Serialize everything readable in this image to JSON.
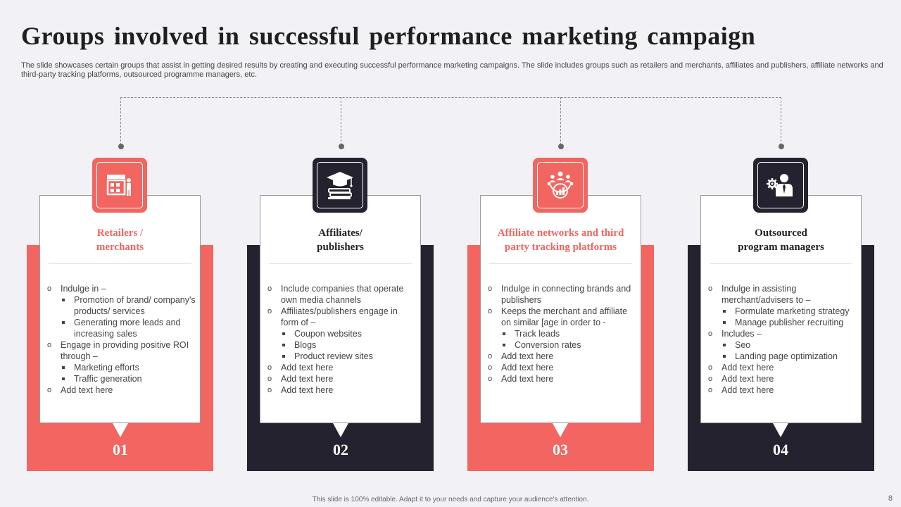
{
  "title": "Groups involved in successful performance marketing campaign",
  "subtitle": "The slide showcases certain groups that assist in getting desired results by creating and executing successful performance marketing campaigns. The slide includes groups such as retailers and merchants, affiliates and publishers, affiliate networks and third-party tracking platforms, outsourced programme managers, etc.",
  "colors": {
    "accent_red": "#f26560",
    "dark": "#23222e"
  },
  "groups": [
    {
      "number": "01",
      "title_line1": "Retailers /",
      "title_line2": "merchants",
      "icon": "store-icon",
      "bullets": [
        "Indulge in –",
        "Promotion of brand/ company's products/ services",
        "Generating more leads and increasing sales",
        "Engage in providing  positive ROI through –",
        "Marketing efforts",
        "Traffic  generation",
        "Add text here"
      ]
    },
    {
      "number": "02",
      "title_line1": "Affiliates/",
      "title_line2": "publishers",
      "icon": "graduation-cap-books-icon",
      "bullets": [
        "Include companies that operate own media channels",
        "Affiliates/publishers engage in form of –",
        "Coupon websites",
        "Blogs",
        "Product review  sites",
        "Add text here",
        "Add text here",
        "Add text here"
      ]
    },
    {
      "number": "03",
      "title_line1": "Affiliate  networks and third",
      "title_line2": "party tracking platforms",
      "icon": "network-tracking-icon",
      "bullets": [
        "Indulge in connecting brands and publishers",
        "Keeps the merchant and affiliate on similar [age in order to -",
        "Track leads",
        "Conversion  rates",
        "Add text here",
        "Add text here",
        "Add text here"
      ]
    },
    {
      "number": "04",
      "title_line1": "Outsourced",
      "title_line2": "program  managers",
      "icon": "manager-gear-icon",
      "bullets": [
        "Indulge  in assisting merchant/advisers  to –",
        "Formulate marketing strategy",
        "Manage publisher recruiting",
        "Includes –",
        "Seo",
        "Landing page optimization",
        "Add text here",
        "Add text here",
        "Add text here"
      ]
    }
  ],
  "footer": "This slide is 100% editable.  Adapt it to your needs and capture your audience's attention.",
  "page_number": "8"
}
